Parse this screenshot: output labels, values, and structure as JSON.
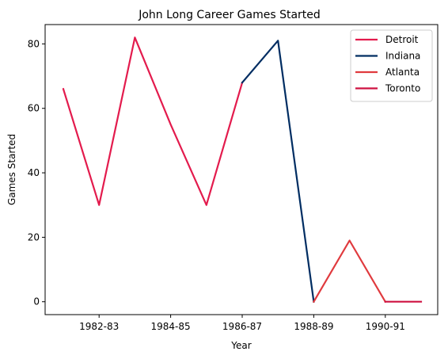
{
  "chart_data": {
    "type": "line",
    "title": "John Long  Career Games Started",
    "xlabel": "Year",
    "ylabel": "Games Started",
    "x_categories": [
      "1981-82",
      "1982-83",
      "1983-84",
      "1984-85",
      "1985-86",
      "1986-87",
      "1987-88",
      "1988-89",
      "1989-90",
      "1990-91",
      "1991-92"
    ],
    "x_tick_labels": [
      "1982-83",
      "1984-85",
      "1986-87",
      "1988-89",
      "1990-91"
    ],
    "y_ticks": [
      0,
      20,
      40,
      60,
      80
    ],
    "ylim": [
      -4,
      86
    ],
    "legend_position": "top-right",
    "series": [
      {
        "name": "Detroit",
        "color": "#e31b4d",
        "x": [
          "1981-82",
          "1982-83",
          "1983-84",
          "1984-85",
          "1985-86",
          "1986-87"
        ],
        "values": [
          66,
          30,
          82,
          55,
          30,
          68
        ]
      },
      {
        "name": "Indiana",
        "color": "#002d62",
        "x": [
          "1986-87",
          "1987-88",
          "1988-89"
        ],
        "values": [
          68,
          81,
          0
        ]
      },
      {
        "name": "Atlanta",
        "color": "#e03a3e",
        "x": [
          "1988-89",
          "1989-90",
          "1990-91"
        ],
        "values": [
          0,
          19,
          0
        ]
      },
      {
        "name": "Toronto",
        "color": "#ce1141",
        "x": [
          "1990-91",
          "1991-92"
        ],
        "values": [
          0,
          0
        ]
      }
    ]
  }
}
